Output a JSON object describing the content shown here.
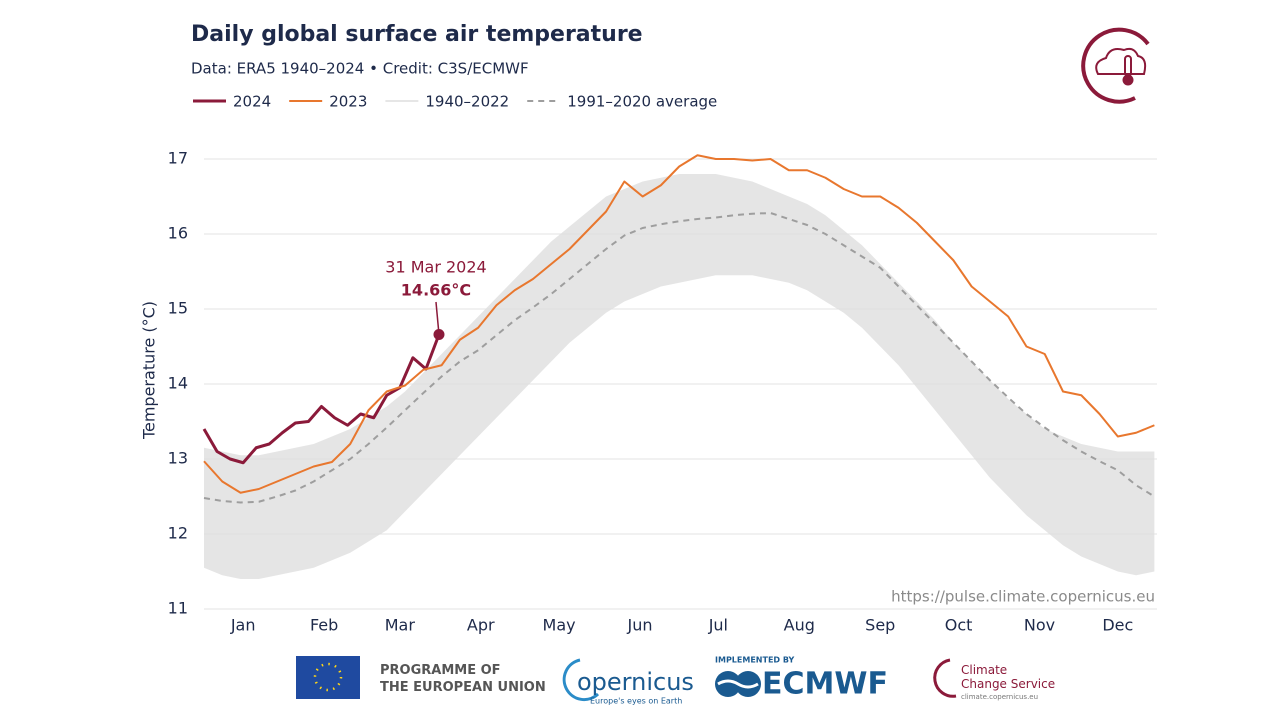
{
  "chart_data": {
    "type": "line",
    "title": "Daily global surface air temperature",
    "subtitle": "Data: ERA5 1940–2024  •  Credit: C3S/ECMWF",
    "y_label": "Temperature (°C)",
    "source": "https://pulse.climate.copernicus.eu",
    "xlim": [
      1,
      366
    ],
    "xticks": [
      {
        "value": 16,
        "label": "Jan"
      },
      {
        "value": 47,
        "label": "Feb"
      },
      {
        "value": 76,
        "label": "Mar"
      },
      {
        "value": 107,
        "label": "Apr"
      },
      {
        "value": 137,
        "label": "May"
      },
      {
        "value": 168,
        "label": "Jun"
      },
      {
        "value": 198,
        "label": "Jul"
      },
      {
        "value": 229,
        "label": "Aug"
      },
      {
        "value": 260,
        "label": "Sep"
      },
      {
        "value": 290,
        "label": "Oct"
      },
      {
        "value": 321,
        "label": "Nov"
      },
      {
        "value": 351,
        "label": "Dec"
      }
    ],
    "ylim": [
      11,
      17
    ],
    "yticks": [
      11,
      12,
      13,
      14,
      15,
      16,
      17
    ],
    "grid": true,
    "x": [
      1,
      8,
      15,
      22,
      29,
      36,
      43,
      50,
      57,
      64,
      71,
      78,
      85,
      92,
      99,
      106,
      113,
      120,
      127,
      134,
      141,
      148,
      155,
      162,
      169,
      176,
      183,
      190,
      197,
      204,
      211,
      218,
      225,
      232,
      239,
      246,
      253,
      260,
      267,
      274,
      281,
      288,
      295,
      302,
      309,
      316,
      323,
      330,
      337,
      344,
      351,
      358,
      365
    ],
    "series": [
      {
        "name": "2024",
        "color": "#8b1a3a",
        "width": 3,
        "x": [
          1,
          6,
          11,
          16,
          21,
          26,
          31,
          36,
          41,
          46,
          51,
          56,
          61,
          66,
          71,
          76,
          81,
          86,
          91
        ],
        "values": [
          13.4,
          13.1,
          13.0,
          12.95,
          13.15,
          13.2,
          13.35,
          13.48,
          13.5,
          13.7,
          13.55,
          13.45,
          13.6,
          13.55,
          13.85,
          13.95,
          14.35,
          14.2,
          14.66
        ]
      },
      {
        "name": "2023",
        "color": "#e8772e",
        "width": 2,
        "values": [
          12.97,
          12.7,
          12.55,
          12.6,
          12.7,
          12.8,
          12.9,
          12.96,
          13.2,
          13.65,
          13.9,
          13.98,
          14.19,
          14.25,
          14.59,
          14.75,
          15.05,
          15.25,
          15.4,
          15.6,
          15.8,
          16.05,
          16.3,
          16.7,
          16.5,
          16.65,
          16.9,
          17.05,
          17.0,
          17.0,
          16.98,
          17.0,
          16.85,
          16.85,
          16.75,
          16.6,
          16.5,
          16.5,
          16.35,
          16.15,
          15.9,
          15.65,
          15.3,
          15.1,
          14.9,
          14.5,
          14.4,
          13.9,
          13.85,
          13.6,
          13.3,
          13.35,
          13.45
        ]
      },
      {
        "name": "1940–2022",
        "color": "#dedede",
        "band": true,
        "lower": [
          11.55,
          11.45,
          11.4,
          11.4,
          11.45,
          11.5,
          11.55,
          11.65,
          11.75,
          11.9,
          12.05,
          12.3,
          12.55,
          12.8,
          13.05,
          13.3,
          13.55,
          13.8,
          14.05,
          14.3,
          14.55,
          14.75,
          14.95,
          15.1,
          15.2,
          15.3,
          15.35,
          15.4,
          15.45,
          15.45,
          15.45,
          15.4,
          15.35,
          15.25,
          15.1,
          14.95,
          14.75,
          14.5,
          14.25,
          13.95,
          13.65,
          13.35,
          13.05,
          12.75,
          12.5,
          12.25,
          12.05,
          11.85,
          11.7,
          11.6,
          11.5,
          11.45,
          11.5
        ],
        "upper": [
          13.15,
          13.1,
          13.05,
          13.05,
          13.1,
          13.15,
          13.2,
          13.3,
          13.4,
          13.55,
          13.7,
          13.9,
          14.15,
          14.4,
          14.65,
          14.9,
          15.15,
          15.4,
          15.65,
          15.9,
          16.1,
          16.3,
          16.5,
          16.6,
          16.7,
          16.75,
          16.8,
          16.8,
          16.8,
          16.75,
          16.7,
          16.6,
          16.5,
          16.4,
          16.25,
          16.05,
          15.85,
          15.6,
          15.35,
          15.1,
          14.85,
          14.55,
          14.3,
          14.05,
          13.8,
          13.6,
          13.4,
          13.3,
          13.2,
          13.15,
          13.1,
          13.1,
          13.1
        ]
      },
      {
        "name": "1991–2020 average",
        "color": "#9e9e9e",
        "width": 2,
        "dashed": true,
        "values": [
          12.48,
          12.44,
          12.42,
          12.43,
          12.5,
          12.58,
          12.7,
          12.85,
          13.0,
          13.2,
          13.42,
          13.65,
          13.88,
          14.1,
          14.3,
          14.45,
          14.65,
          14.85,
          15.02,
          15.2,
          15.4,
          15.6,
          15.8,
          15.98,
          16.08,
          16.13,
          16.17,
          16.2,
          16.22,
          16.25,
          16.27,
          16.28,
          16.2,
          16.12,
          16.0,
          15.85,
          15.7,
          15.55,
          15.3,
          15.05,
          14.8,
          14.55,
          14.3,
          14.05,
          13.82,
          13.6,
          13.42,
          13.25,
          13.1,
          12.97,
          12.85,
          12.65,
          12.5
        ]
      }
    ],
    "highlight": {
      "label": "31 Mar 2024",
      "x": 91,
      "value": 14.66,
      "value_label": "14.66°C",
      "color": "#8b1a3a"
    }
  },
  "footer": {
    "eu": "PROGRAMME OF\nTHE EUROPEAN UNION",
    "copernicus": "opernicus",
    "copernicus_tagline": "Europe's eyes on Earth",
    "implemented_by": "IMPLEMENTED BY",
    "ecmwf": "ECMWF",
    "c3s": "Climate\nChange Service",
    "c3s_url": "climate.copernicus.eu"
  }
}
